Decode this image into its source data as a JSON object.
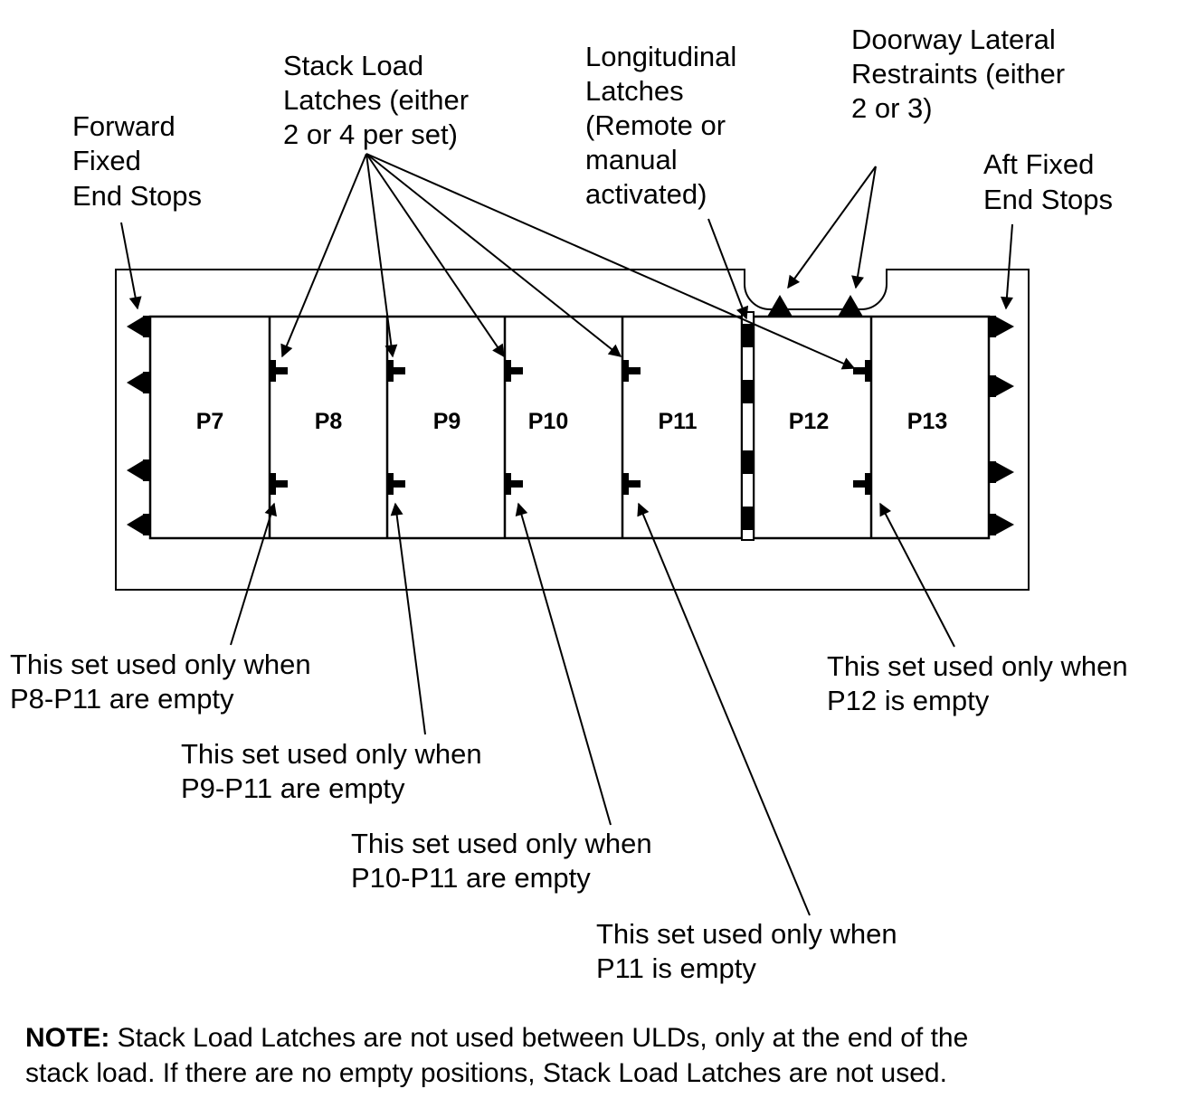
{
  "labels": {
    "forward_end_stops": [
      "Forward",
      "Fixed",
      "End Stops"
    ],
    "stack_load_latches": [
      "Stack Load",
      "Latches (either",
      "2 or 4 per set)"
    ],
    "longitudinal_latches": [
      "Longitudinal",
      "Latches",
      "(Remote or",
      "manual",
      "activated)"
    ],
    "doorway_lateral": [
      "Doorway Lateral",
      "Restraints (either",
      "2 or 3)"
    ],
    "aft_end_stops": [
      "Aft Fixed",
      "End Stops"
    ]
  },
  "positions": [
    "P7",
    "P8",
    "P9",
    "P10",
    "P11",
    "P12",
    "P13"
  ],
  "callouts": {
    "p8_p11": [
      "This set used only when",
      "P8-P11 are empty"
    ],
    "p9_p11": [
      "This set used only when",
      "P9-P11 are empty"
    ],
    "p10_p11": [
      "This set used only when",
      "P10-P11 are empty"
    ],
    "p11": [
      "This set used only when",
      "P11 is empty"
    ],
    "p12": [
      "This set used only when",
      "P12 is empty"
    ]
  },
  "note": {
    "bold": "NOTE:",
    "line1": " Stack Load Latches are not used between ULDs, only at the end of the",
    "line2": "stack load.  If there are no empty positions, Stack Load Latches are not used."
  }
}
